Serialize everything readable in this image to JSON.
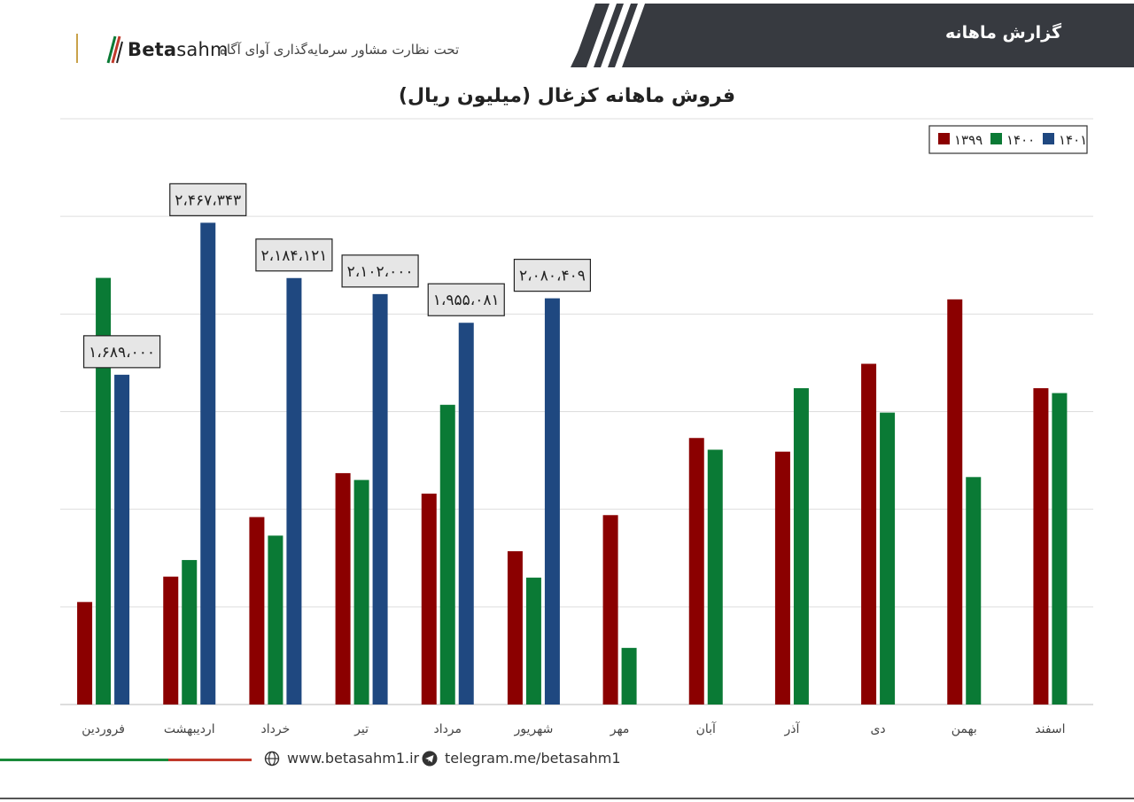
{
  "header": {
    "title": "گزارش ماهانه",
    "logo_text_bold": "Beta",
    "logo_text": "sahm",
    "subtitle": "تحت نظارت مشاور سرمایه‌گذاری آوای آگاه"
  },
  "footer": {
    "website": "www.betasahm1.ir",
    "telegram": "telegram.me/betasahm1"
  },
  "colors": {
    "y1399": "#8b0000",
    "y1400": "#0a7a35",
    "y1401": "#1f4880",
    "header_bg": "#373a40"
  },
  "icons": [
    "globe-icon",
    "telegram-icon",
    "logo-icon"
  ],
  "chart_data": {
    "type": "bar",
    "title": "فروش ماهانه کزغال (میلیون ریال)",
    "categories": [
      "فروردین",
      "اردیبهشت",
      "خرداد",
      "تیر",
      "مرداد",
      "شهریور",
      "مهر",
      "آبان",
      "آذر",
      "دی",
      "بهمن",
      "اسفند"
    ],
    "series": [
      {
        "name": "۱۳۹۹",
        "values": [
          525000,
          655000,
          960000,
          1185000,
          1080000,
          785000,
          970000,
          1365000,
          1295000,
          1745000,
          2075000,
          1620000
        ]
      },
      {
        "name": "۱۴۰۰",
        "values": [
          2185000,
          740000,
          865000,
          1150000,
          1535000,
          650000,
          290000,
          1305000,
          1620000,
          1495000,
          1165000,
          1595000
        ]
      },
      {
        "name": "۱۴۰۱",
        "values": [
          1689000,
          2467343,
          2184121,
          2102000,
          1955081,
          2080409,
          null,
          null,
          null,
          null,
          null,
          null
        ]
      }
    ],
    "data_labels": {
      "series": "۱۴۰۱",
      "labels": [
        "۱،۶۸۹،۰۰۰",
        "۲،۴۶۷،۳۴۳",
        "۲،۱۸۴،۱۲۱",
        "۲،۱۰۲،۰۰۰",
        "۱،۹۵۵،۰۸۱",
        "۲،۰۸۰،۴۰۹"
      ]
    },
    "ylim": [
      0,
      3000000
    ],
    "y_tick_step": 500000,
    "grid": true,
    "y_tick_labels_shown": false,
    "legend_position": "top-right"
  }
}
